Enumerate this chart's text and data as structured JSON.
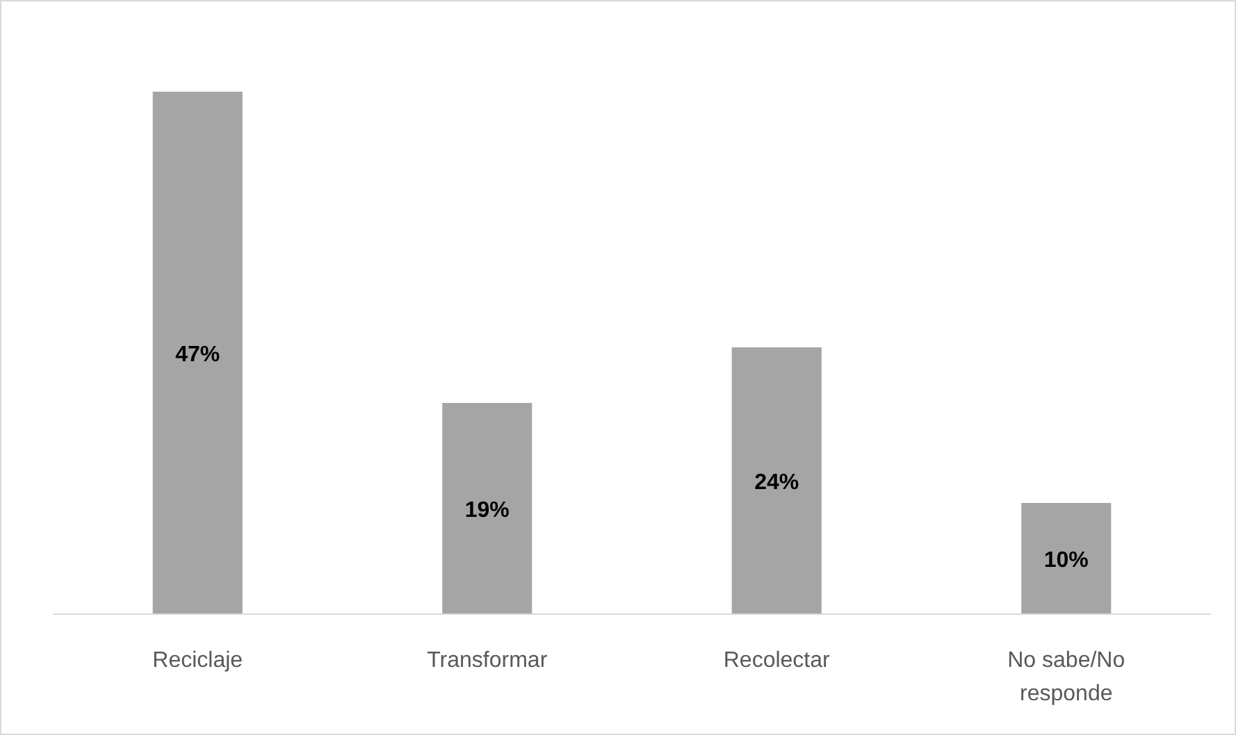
{
  "chart_data": {
    "type": "bar",
    "categories": [
      "Reciclaje",
      "Transformar",
      "Recolectar",
      "No sabe/No responde"
    ],
    "values": [
      47,
      19,
      24,
      10
    ],
    "value_labels": [
      "47%",
      "19%",
      "24%",
      "10%"
    ],
    "color": "#a5a5a5"
  }
}
